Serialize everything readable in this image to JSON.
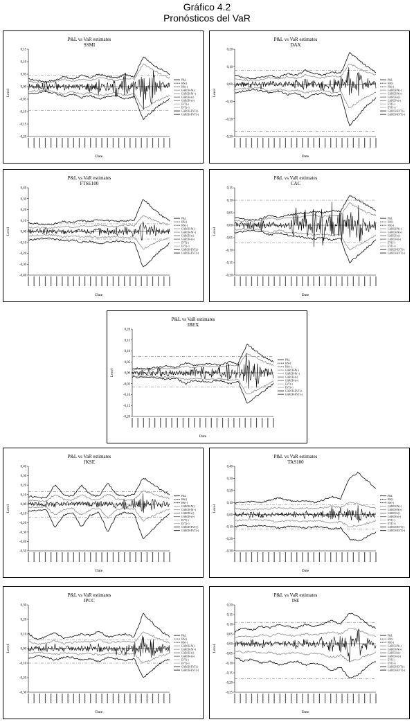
{
  "header": {
    "line1": "Gráfico 4.2",
    "line2": "Pronósticos del VaR"
  },
  "common": {
    "chart_title": "P&L vs VaR estimates",
    "xlabel": "Date",
    "ylabel": "Level"
  },
  "chart_data": [
    {
      "type": "line",
      "index": "SSMI",
      "ylim": [
        -0.2,
        0.15
      ],
      "yticks": [
        "0,15",
        "0,10",
        "0,05",
        "0,00",
        "-0,05",
        "-0,10",
        "-0,15",
        "-0,20"
      ],
      "hlines": [
        0.045,
        -0.095
      ],
      "legend": [
        "P&L",
        "HS(-)",
        "HS(+)",
        "GARCH-N(-)",
        "GARCH-N(+)",
        "GARCH-t(-)",
        "GARCH-t(+)",
        "EVT(-)",
        "EVT(+)",
        "GARCH-EVT(-)",
        "GARCH-EVT(+)"
      ],
      "series": {
        "pl": [
          0.01,
          -0.01,
          0.02,
          -0.02,
          0.01,
          0.0,
          -0.01,
          0.02,
          -0.03,
          0.02,
          -0.04,
          0.06,
          -0.05,
          0.1,
          -0.08,
          0.03,
          -0.02
        ],
        "upper_a": [
          0.03,
          0.025,
          0.02,
          0.025,
          0.04,
          0.03,
          0.045,
          0.035,
          0.05,
          0.04,
          0.035,
          0.05,
          0.04,
          0.12,
          0.09,
          0.07,
          0.05
        ],
        "upper_b": [
          0.02,
          0.015,
          0.015,
          0.02,
          0.03,
          0.02,
          0.03,
          0.025,
          0.035,
          0.03,
          0.025,
          0.035,
          0.03,
          0.09,
          0.07,
          0.05,
          0.035
        ],
        "lower_a": [
          -0.03,
          -0.025,
          -0.02,
          -0.025,
          -0.04,
          -0.03,
          -0.045,
          -0.035,
          -0.05,
          -0.04,
          -0.035,
          -0.05,
          -0.04,
          -0.13,
          -0.1,
          -0.07,
          -0.05
        ],
        "lower_b": [
          -0.02,
          -0.015,
          -0.015,
          -0.02,
          -0.03,
          -0.02,
          -0.03,
          -0.025,
          -0.035,
          -0.03,
          -0.025,
          -0.035,
          -0.03,
          -0.09,
          -0.07,
          -0.05,
          -0.035
        ]
      }
    },
    {
      "type": "line",
      "index": "DAX",
      "ylim": [
        -0.3,
        0.2
      ],
      "yticks": [
        "0,20",
        "0,10",
        "0,00",
        "-0,10",
        "-0,20",
        "-0,30"
      ],
      "hlines": [
        0.08,
        -0.27
      ],
      "legend": [
        "P&L",
        "HS(-)",
        "HS(+)",
        "GARCH-N(-)",
        "GARCH-N(+)",
        "GARCH-t(-)",
        "GARCH-t(+)",
        "EVT(-)",
        "EVT(+)",
        "GARCH-EVT(-)",
        "GARCH-EVT(+)"
      ],
      "series": {
        "pl": [
          0.01,
          -0.01,
          0.02,
          -0.02,
          0.01,
          0.0,
          -0.01,
          0.02,
          -0.03,
          0.02,
          -0.04,
          0.06,
          -0.05,
          0.1,
          -0.08,
          0.03,
          -0.02
        ],
        "upper_a": [
          0.05,
          0.04,
          0.03,
          0.04,
          0.05,
          0.04,
          0.06,
          0.05,
          0.08,
          0.06,
          0.05,
          0.07,
          0.06,
          0.18,
          0.14,
          0.1,
          0.07
        ],
        "upper_b": [
          0.03,
          0.025,
          0.02,
          0.025,
          0.04,
          0.03,
          0.04,
          0.035,
          0.05,
          0.04,
          0.035,
          0.05,
          0.04,
          0.12,
          0.09,
          0.07,
          0.05
        ],
        "lower_a": [
          -0.05,
          -0.04,
          -0.03,
          -0.04,
          -0.05,
          -0.04,
          -0.06,
          -0.05,
          -0.08,
          -0.06,
          -0.05,
          -0.07,
          -0.06,
          -0.24,
          -0.18,
          -0.12,
          -0.08
        ],
        "lower_b": [
          -0.03,
          -0.025,
          -0.02,
          -0.025,
          -0.04,
          -0.03,
          -0.04,
          -0.035,
          -0.05,
          -0.04,
          -0.035,
          -0.05,
          -0.04,
          -0.14,
          -0.1,
          -0.07,
          -0.05
        ]
      }
    },
    {
      "type": "line",
      "index": "FTSE100",
      "ylim": [
        -0.4,
        0.4
      ],
      "yticks": [
        "0,40",
        "0,30",
        "0,20",
        "0,10",
        "0,00",
        "-0,10",
        "-0,20",
        "-0,30",
        "-0,40"
      ],
      "hlines": [
        0.07,
        -0.07
      ],
      "legend": [
        "P&L",
        "HS(-)",
        "HS(+)",
        "GARCH-N(-)",
        "GARCH-N(+)",
        "GARCH-t(-)",
        "GARCH-t(+)",
        "EVT(-)",
        "EVT(+)",
        "GARCH-EVT(-)",
        "GARCH-EVT(+)"
      ],
      "series": {
        "pl": [
          0.01,
          -0.01,
          0.02,
          -0.02,
          0.01,
          0.0,
          -0.01,
          0.02,
          -0.03,
          0.02,
          -0.04,
          0.06,
          -0.05,
          0.1,
          -0.08,
          0.03,
          -0.02
        ],
        "upper_a": [
          0.08,
          0.07,
          0.06,
          0.07,
          0.09,
          0.08,
          0.1,
          0.09,
          0.11,
          0.1,
          0.09,
          0.1,
          0.1,
          0.3,
          0.22,
          0.15,
          0.1
        ],
        "upper_b": [
          0.04,
          0.035,
          0.03,
          0.035,
          0.05,
          0.04,
          0.05,
          0.045,
          0.06,
          0.05,
          0.045,
          0.06,
          0.05,
          0.15,
          0.11,
          0.08,
          0.06
        ],
        "lower_a": [
          -0.08,
          -0.07,
          -0.06,
          -0.07,
          -0.09,
          -0.08,
          -0.1,
          -0.09,
          -0.11,
          -0.1,
          -0.09,
          -0.1,
          -0.1,
          -0.33,
          -0.25,
          -0.17,
          -0.11
        ],
        "lower_b": [
          -0.04,
          -0.035,
          -0.03,
          -0.035,
          -0.05,
          -0.04,
          -0.05,
          -0.045,
          -0.06,
          -0.05,
          -0.045,
          -0.06,
          -0.05,
          -0.16,
          -0.12,
          -0.08,
          -0.06
        ]
      }
    },
    {
      "type": "line",
      "index": "CAC",
      "ylim": [
        -0.2,
        0.15
      ],
      "yticks": [
        "0,15",
        "0,10",
        "0,05",
        "0,00",
        "-0,05",
        "-0,10",
        "-0,15",
        "-0,20"
      ],
      "hlines": [
        0.1,
        -0.07
      ],
      "legend": [
        "P&L",
        "HS(-)",
        "HS(+)",
        "GARCH-N(-)",
        "GARCH-N(+)",
        "GARCH-t(-)",
        "GARCH-t(+)",
        "EVT(-)",
        "EVT(+)",
        "GARCH-EVT(-)",
        "GARCH-EVT(+)"
      ],
      "series": {
        "pl": [
          0.01,
          -0.01,
          0.02,
          -0.02,
          0.01,
          0.0,
          -0.01,
          0.08,
          -0.1,
          0.09,
          -0.11,
          0.1,
          -0.12,
          0.1,
          -0.09,
          0.03,
          -0.02
        ],
        "upper_a": [
          0.03,
          0.025,
          0.02,
          0.025,
          0.04,
          0.03,
          0.04,
          0.045,
          0.05,
          0.055,
          0.05,
          0.06,
          0.055,
          0.12,
          0.1,
          0.08,
          0.06
        ],
        "upper_b": [
          0.02,
          0.015,
          0.015,
          0.02,
          0.03,
          0.02,
          0.03,
          0.03,
          0.035,
          0.04,
          0.035,
          0.04,
          0.04,
          0.09,
          0.07,
          0.05,
          0.04
        ],
        "lower_a": [
          -0.03,
          -0.025,
          -0.02,
          -0.025,
          -0.04,
          -0.03,
          -0.04,
          -0.045,
          -0.05,
          -0.055,
          -0.05,
          -0.06,
          -0.055,
          -0.15,
          -0.12,
          -0.09,
          -0.06
        ],
        "lower_b": [
          -0.02,
          -0.015,
          -0.015,
          -0.02,
          -0.03,
          -0.02,
          -0.03,
          -0.03,
          -0.035,
          -0.04,
          -0.035,
          -0.04,
          -0.04,
          -0.1,
          -0.08,
          -0.06,
          -0.04
        ]
      }
    },
    {
      "type": "line",
      "index": "IBEX",
      "ylim": [
        -0.2,
        0.2
      ],
      "yticks": [
        "0,20",
        "0,15",
        "0,10",
        "0,05",
        "0,00",
        "-0,05",
        "-0,10",
        "-0,15",
        "-0,20"
      ],
      "hlines": [
        0.075,
        -0.065
      ],
      "legend": [
        "P&L",
        "HS(-)",
        "HS(+)",
        "GARCH-N(-)",
        "GARCH-N(+)",
        "GARCH-t(-)",
        "GARCH-t(+)",
        "EVT(-)",
        "EVT(+)",
        "GARCH-EVT(-)",
        "GARCH-EVT(+)"
      ],
      "series": {
        "pl": [
          0.01,
          -0.01,
          0.02,
          -0.02,
          0.01,
          0.0,
          -0.01,
          0.02,
          -0.03,
          0.02,
          -0.04,
          0.06,
          -0.05,
          0.1,
          -0.08,
          0.03,
          -0.02
        ],
        "upper_a": [
          0.02,
          0.02,
          0.02,
          0.025,
          0.03,
          0.025,
          0.045,
          0.035,
          0.04,
          0.04,
          0.035,
          0.05,
          0.04,
          0.13,
          0.1,
          0.07,
          0.05
        ],
        "upper_b": [
          0.015,
          0.015,
          0.015,
          0.02,
          0.02,
          0.02,
          0.03,
          0.025,
          0.03,
          0.03,
          0.025,
          0.035,
          0.03,
          0.09,
          0.07,
          0.05,
          0.035
        ],
        "lower_a": [
          -0.02,
          -0.02,
          -0.02,
          -0.025,
          -0.03,
          -0.025,
          -0.05,
          -0.035,
          -0.04,
          -0.04,
          -0.035,
          -0.05,
          -0.04,
          -0.14,
          -0.11,
          -0.08,
          -0.05
        ],
        "lower_b": [
          -0.015,
          -0.015,
          -0.015,
          -0.02,
          -0.02,
          -0.02,
          -0.03,
          -0.025,
          -0.03,
          -0.03,
          -0.025,
          -0.035,
          -0.03,
          -0.1,
          -0.08,
          -0.06,
          -0.04
        ]
      }
    },
    {
      "type": "line",
      "index": "JKSE",
      "ylim": [
        -0.5,
        0.4
      ],
      "yticks": [
        "0,40",
        "0,30",
        "0,20",
        "0,10",
        "0,00",
        "-0,10",
        "-0,20",
        "-0,30",
        "-0,40",
        "-0,50"
      ],
      "hlines": [
        0.13,
        -0.14
      ],
      "legend": [
        "P&L",
        "HS(-)",
        "HS(+)",
        "GARCH-N(-)",
        "GARCH-N(+)",
        "GARCH-t(-)",
        "GARCH-t(+)",
        "EVT(-)",
        "EVT(+)",
        "GARCH-EVT(-)",
        "GARCH-EVT(+)"
      ],
      "series": {
        "pl": [
          0.01,
          -0.01,
          0.02,
          -0.02,
          0.01,
          0.0,
          -0.01,
          0.02,
          -0.03,
          0.02,
          -0.04,
          0.06,
          -0.05,
          0.1,
          -0.08,
          0.03,
          -0.02
        ],
        "upper_a": [
          0.08,
          0.07,
          0.06,
          0.2,
          0.1,
          0.08,
          0.2,
          0.1,
          0.08,
          0.22,
          0.1,
          0.08,
          0.1,
          0.28,
          0.22,
          0.15,
          0.1
        ],
        "upper_b": [
          0.04,
          0.035,
          0.03,
          0.1,
          0.05,
          0.04,
          0.1,
          0.05,
          0.04,
          0.11,
          0.05,
          0.04,
          0.05,
          0.14,
          0.11,
          0.08,
          0.06
        ],
        "lower_a": [
          -0.08,
          -0.07,
          -0.06,
          -0.25,
          -0.12,
          -0.09,
          -0.25,
          -0.12,
          -0.09,
          -0.3,
          -0.12,
          -0.09,
          -0.11,
          -0.38,
          -0.28,
          -0.18,
          -0.11
        ],
        "lower_b": [
          -0.04,
          -0.035,
          -0.03,
          -0.12,
          -0.06,
          -0.045,
          -0.12,
          -0.06,
          -0.045,
          -0.15,
          -0.06,
          -0.045,
          -0.055,
          -0.18,
          -0.13,
          -0.09,
          -0.06
        ]
      }
    },
    {
      "type": "line",
      "index": "TAS100",
      "ylim": [
        -0.3,
        0.4
      ],
      "yticks": [
        "0,40",
        "0,30",
        "0,20",
        "0,10",
        "0,00",
        "-0,10",
        "-0,20",
        "-0,30"
      ],
      "hlines": [
        0.08,
        -0.12
      ],
      "legend": [
        "P&L",
        "HS(-)",
        "HS(+)",
        "GARCH-N(-)",
        "GARCH-N(+)",
        "GARCH-t(-)",
        "GARCH-t(+)",
        "EVT(-)",
        "EVT(+)",
        "GARCH-EVT(-)",
        "GARCH-EVT(+)"
      ],
      "series": {
        "pl": [
          0.01,
          -0.01,
          0.02,
          -0.02,
          0.01,
          0.0,
          -0.01,
          0.02,
          -0.03,
          0.02,
          -0.04,
          0.06,
          -0.05,
          0.1,
          -0.08,
          0.03,
          -0.02
        ],
        "upper_a": [
          0.1,
          0.1,
          0.11,
          0.1,
          0.12,
          0.14,
          0.12,
          0.11,
          0.12,
          0.1,
          0.12,
          0.15,
          0.13,
          0.3,
          0.35,
          0.28,
          0.22
        ],
        "upper_b": [
          0.05,
          0.045,
          0.04,
          0.045,
          0.05,
          0.06,
          0.05,
          0.05,
          0.055,
          0.05,
          0.055,
          0.07,
          0.06,
          0.1,
          0.09,
          0.07,
          0.05
        ],
        "lower_a": [
          -0.1,
          -0.09,
          -0.1,
          -0.09,
          -0.1,
          -0.11,
          -0.1,
          -0.1,
          -0.11,
          -0.1,
          -0.1,
          -0.12,
          -0.11,
          -0.2,
          -0.22,
          -0.18,
          -0.15
        ],
        "lower_b": [
          -0.05,
          -0.045,
          -0.04,
          -0.045,
          -0.05,
          -0.06,
          -0.05,
          -0.05,
          -0.055,
          -0.05,
          -0.055,
          -0.07,
          -0.06,
          -0.1,
          -0.09,
          -0.07,
          -0.05
        ]
      }
    },
    {
      "type": "line",
      "index": "IPCC",
      "ylim": [
        -0.3,
        0.3
      ],
      "yticks": [
        "0,30",
        "0,20",
        "0,10",
        "0,00",
        "-0,10",
        "-0,20",
        "-0,30"
      ],
      "hlines": [
        0.06,
        -0.1
      ],
      "legend": [
        "P&L",
        "HS(-)",
        "HS(+)",
        "GARCH-N(-)",
        "GARCH-N(+)",
        "GARCH-t(-)",
        "GARCH-t(+)",
        "EVT(-)",
        "EVT(+)",
        "GARCH-EVT(-)",
        "GARCH-EVT(+)"
      ],
      "series": {
        "pl": [
          0.01,
          -0.01,
          0.02,
          -0.02,
          0.01,
          0.0,
          -0.01,
          0.02,
          -0.03,
          0.02,
          -0.04,
          0.06,
          -0.05,
          0.1,
          -0.08,
          0.03,
          -0.02
        ],
        "upper_a": [
          0.1,
          0.06,
          0.08,
          0.11,
          0.07,
          0.08,
          0.1,
          0.09,
          0.12,
          0.08,
          0.09,
          0.1,
          0.08,
          0.24,
          0.18,
          0.12,
          0.08
        ],
        "upper_b": [
          0.05,
          0.03,
          0.04,
          0.055,
          0.035,
          0.04,
          0.05,
          0.045,
          0.06,
          0.04,
          0.045,
          0.05,
          0.04,
          0.12,
          0.09,
          0.06,
          0.04
        ],
        "lower_a": [
          -0.07,
          -0.05,
          -0.06,
          -0.08,
          -0.06,
          -0.06,
          -0.08,
          -0.07,
          -0.09,
          -0.06,
          -0.07,
          -0.08,
          -0.07,
          -0.2,
          -0.15,
          -0.1,
          -0.07
        ],
        "lower_b": [
          -0.035,
          -0.025,
          -0.03,
          -0.04,
          -0.03,
          -0.03,
          -0.04,
          -0.035,
          -0.045,
          -0.03,
          -0.035,
          -0.04,
          -0.035,
          -0.1,
          -0.075,
          -0.05,
          -0.035
        ]
      }
    },
    {
      "type": "line",
      "index": "ISE",
      "ylim": [
        -0.25,
        0.2
      ],
      "yticks": [
        "0,20",
        "0,15",
        "0,10",
        "0,05",
        "0,00",
        "-0,05",
        "-0,10",
        "-0,15",
        "-0,20",
        "-0,25"
      ],
      "hlines": [
        0.11,
        -0.18
      ],
      "legend": [
        "P&L",
        "HS(-)",
        "HS(+)",
        "GARCH-N(-)",
        "GARCH-N(+)",
        "GARCH-t(-)",
        "GARCH-t(+)",
        "EVT(-)",
        "EVT(+)",
        "GARCH-EVT(-)",
        "GARCH-EVT(+)"
      ],
      "series": {
        "pl": [
          0.01,
          -0.01,
          0.02,
          -0.02,
          0.01,
          0.0,
          -0.01,
          0.02,
          -0.03,
          0.02,
          -0.04,
          0.06,
          -0.05,
          0.1,
          -0.08,
          0.03,
          -0.02
        ],
        "upper_a": [
          0.06,
          0.08,
          0.07,
          0.09,
          0.08,
          0.1,
          0.09,
          0.08,
          0.1,
          0.09,
          0.1,
          0.12,
          0.1,
          0.16,
          0.14,
          0.1,
          0.08
        ],
        "upper_b": [
          0.03,
          0.04,
          0.035,
          0.045,
          0.04,
          0.05,
          0.045,
          0.04,
          0.05,
          0.045,
          0.05,
          0.06,
          0.05,
          0.08,
          0.07,
          0.05,
          0.04
        ],
        "lower_a": [
          -0.07,
          -0.09,
          -0.08,
          -0.1,
          -0.09,
          -0.11,
          -0.1,
          -0.09,
          -0.11,
          -0.1,
          -0.11,
          -0.14,
          -0.12,
          -0.18,
          -0.16,
          -0.12,
          -0.09
        ],
        "lower_b": [
          -0.035,
          -0.045,
          -0.04,
          -0.05,
          -0.045,
          -0.055,
          -0.05,
          -0.045,
          -0.055,
          -0.05,
          -0.055,
          -0.07,
          -0.06,
          -0.09,
          -0.08,
          -0.06,
          -0.045
        ]
      }
    }
  ]
}
